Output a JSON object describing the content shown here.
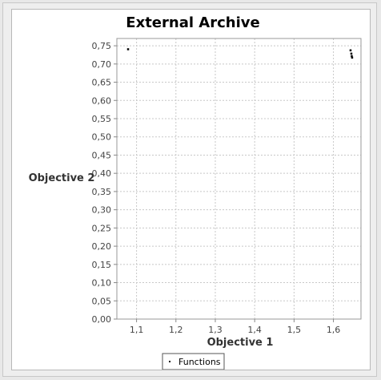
{
  "chart_data": {
    "type": "scatter",
    "title": "External Archive",
    "xlabel": "Objective 1",
    "ylabel": "Objective 2",
    "xlim": [
      1.05,
      1.67
    ],
    "ylim": [
      0.0,
      0.77
    ],
    "xticks": [
      1.1,
      1.2,
      1.3,
      1.4,
      1.5,
      1.6
    ],
    "xtick_labels": [
      "1,1",
      "1,2",
      "1,3",
      "1,4",
      "1,5",
      "1,6"
    ],
    "yticks": [
      0.0,
      0.05,
      0.1,
      0.15,
      0.2,
      0.25,
      0.3,
      0.35,
      0.4,
      0.45,
      0.5,
      0.55,
      0.6,
      0.65,
      0.7,
      0.75
    ],
    "ytick_labels": [
      "0,00",
      "0,05",
      "0,10",
      "0,15",
      "0,20",
      "0,25",
      "0,30",
      "0,35",
      "0,40",
      "0,45",
      "0,50",
      "0,55",
      "0,60",
      "0,65",
      "0,70",
      "0,75"
    ],
    "grid": true,
    "legend_position": "bottom",
    "series": [
      {
        "name": "Functions",
        "color": "#000000",
        "points": [
          {
            "x": 1.078,
            "y": 0.741
          },
          {
            "x": 1.643,
            "y": 0.738
          },
          {
            "x": 1.645,
            "y": 0.729
          },
          {
            "x": 1.646,
            "y": 0.722
          },
          {
            "x": 1.647,
            "y": 0.718
          }
        ]
      }
    ]
  }
}
